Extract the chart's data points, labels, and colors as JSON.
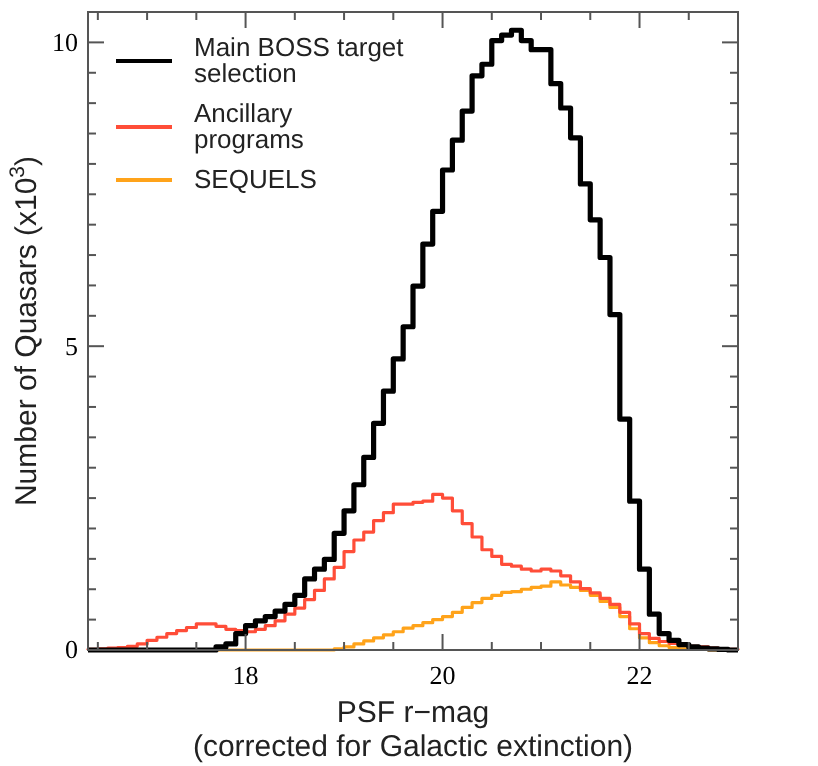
{
  "chart_data": {
    "type": "histogram",
    "xlabel": "PSF r−mag\n(corrected for Galactic extinction)",
    "ylabel": "Number of Quasars (x10$^{3}$)",
    "bins": [
      16.4,
      16.5,
      16.6,
      16.7,
      16.8,
      16.9,
      17.0,
      17.1,
      17.2,
      17.3,
      17.4,
      17.5,
      17.6,
      17.7,
      17.8,
      17.9,
      18.0,
      18.1,
      18.2,
      18.3,
      18.4,
      18.5,
      18.6,
      18.7,
      18.8,
      18.9,
      19.0,
      19.1,
      19.2,
      19.3,
      19.4,
      19.5,
      19.6,
      19.7,
      19.8,
      19.9,
      20.0,
      20.1,
      20.2,
      20.3,
      20.4,
      20.5,
      20.6,
      20.7,
      20.8,
      20.9,
      21.0,
      21.1,
      21.2,
      21.3,
      21.4,
      21.5,
      21.6,
      21.7,
      21.8,
      21.9,
      22.0,
      22.1,
      22.2,
      22.3,
      22.4,
      22.5,
      22.6,
      22.7,
      22.8,
      22.9,
      23.0
    ],
    "series": [
      {
        "name": "Main BOSS target selection",
        "color": "#000000",
        "values": [
          0,
          0,
          0,
          0,
          0,
          0,
          0,
          0,
          0,
          0,
          0,
          0,
          0,
          0.05,
          0.1,
          0.27,
          0.4,
          0.48,
          0.55,
          0.64,
          0.75,
          0.9,
          1.17,
          1.33,
          1.49,
          1.92,
          2.29,
          2.72,
          3.17,
          3.73,
          4.26,
          4.79,
          5.32,
          5.99,
          6.68,
          7.22,
          7.9,
          8.39,
          8.87,
          9.45,
          9.64,
          10.03,
          10.12,
          10.2,
          10.03,
          9.88,
          9.88,
          9.32,
          8.92,
          8.43,
          7.67,
          7.08,
          6.46,
          5.52,
          3.8,
          2.45,
          1.33,
          0.59,
          0.27,
          0.16,
          0.09,
          0.05,
          0.03,
          0.02,
          0.01,
          0
        ]
      },
      {
        "name": "Ancillary programs",
        "color": "#ff4d38",
        "values": [
          0.01,
          0.02,
          0.03,
          0.04,
          0.06,
          0.1,
          0.16,
          0.21,
          0.27,
          0.32,
          0.37,
          0.43,
          0.43,
          0.39,
          0.34,
          0.32,
          0.3,
          0.34,
          0.4,
          0.48,
          0.59,
          0.69,
          0.83,
          0.98,
          1.17,
          1.36,
          1.62,
          1.81,
          1.94,
          2.13,
          2.26,
          2.4,
          2.4,
          2.43,
          2.45,
          2.56,
          2.5,
          2.29,
          2.08,
          1.86,
          1.65,
          1.54,
          1.41,
          1.38,
          1.33,
          1.3,
          1.33,
          1.3,
          1.22,
          1.12,
          1.01,
          0.94,
          0.85,
          0.75,
          0.62,
          0.43,
          0.27,
          0.19,
          0.14,
          0.11,
          0.09,
          0.06,
          0.05,
          0.03,
          0.02,
          0.01
        ]
      },
      {
        "name": "SEQUELS",
        "color": "#ffa31a",
        "values": [
          0,
          0,
          0,
          0,
          0,
          0,
          0,
          0,
          0,
          0,
          0,
          0,
          0,
          0,
          0,
          0,
          0,
          0,
          0,
          0,
          0,
          0,
          0,
          0,
          0,
          0.02,
          0.05,
          0.1,
          0.15,
          0.2,
          0.25,
          0.3,
          0.36,
          0.4,
          0.45,
          0.5,
          0.55,
          0.62,
          0.7,
          0.78,
          0.85,
          0.9,
          0.95,
          0.96,
          1.0,
          1.03,
          1.05,
          1.12,
          1.07,
          1.03,
          0.98,
          0.9,
          0.8,
          0.7,
          0.55,
          0.35,
          0.2,
          0.12,
          0.07,
          0.04,
          0.02,
          0.01,
          0.01,
          0,
          0,
          0
        ]
      }
    ],
    "xlim": [
      16.4,
      23.0
    ],
    "xticks": [
      {
        "value": 16.5,
        "label": null
      },
      {
        "value": 17,
        "label": null
      },
      {
        "value": 17.5,
        "label": null
      },
      18,
      {
        "value": 18.5,
        "label": null
      },
      {
        "value": 19,
        "label": null
      },
      {
        "value": 19.5,
        "label": null
      },
      20,
      {
        "value": 20.5,
        "label": null
      },
      {
        "value": 21,
        "label": null
      },
      {
        "value": 21.5,
        "label": null
      },
      22,
      {
        "value": 22.5,
        "label": null
      }
    ],
    "ylim": [
      0,
      10.5
    ],
    "yticks": [
      0,
      {
        "value": 0.5,
        "label": null
      },
      {
        "value": 1,
        "label": null
      },
      {
        "value": 1.5,
        "label": null
      },
      {
        "value": 2,
        "label": null
      },
      {
        "value": 2.5,
        "label": null
      },
      {
        "value": 3,
        "label": null
      },
      {
        "value": 3.5,
        "label": null
      },
      {
        "value": 4,
        "label": null
      },
      {
        "value": 4.5,
        "label": null
      },
      5,
      {
        "value": 5.5,
        "label": null
      },
      {
        "value": 6,
        "label": null
      },
      {
        "value": 6.5,
        "label": null
      },
      {
        "value": 7,
        "label": null
      },
      {
        "value": 7.5,
        "label": null
      },
      {
        "value": 8,
        "label": null
      },
      {
        "value": 8.5,
        "label": null
      },
      {
        "value": 9,
        "label": null
      },
      {
        "value": 9.5,
        "label": null
      },
      10
    ],
    "legend": "top left"
  }
}
